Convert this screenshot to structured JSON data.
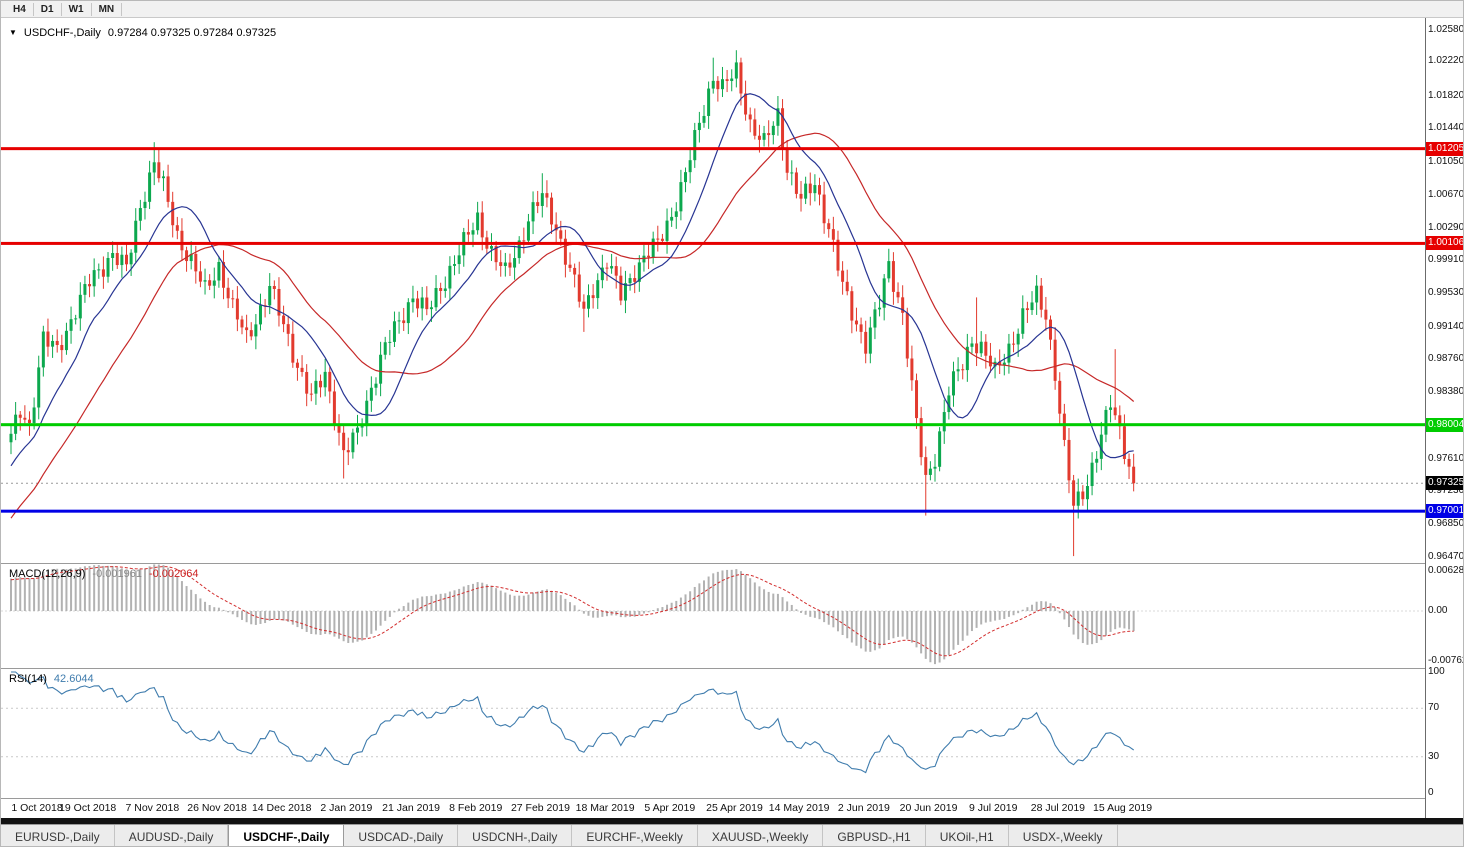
{
  "colors": {
    "up": "#0ca84e",
    "down": "#e23a2e",
    "ma_fast": "#283593",
    "ma_slow": "#c62828",
    "level_red": "#e60000",
    "level_green": "#00cc00",
    "level_blue": "#0000e6",
    "current_badge": "#000000",
    "current_line": "#999999",
    "macd_hist": "#b2b2b2",
    "macd_signal": "#d32f2f",
    "rsi_line": "#3f7cad"
  },
  "toolbar": {
    "timeframes": [
      "H4",
      "D1",
      "W1",
      "MN"
    ]
  },
  "chart": {
    "dropdown_icon": "▼",
    "title": "USDCHF-,Daily",
    "ohlc": "0.97284 0.97325 0.97284 0.97325"
  },
  "chart_data": {
    "type": "candlestick",
    "symbol": "USDCHF",
    "period": "Daily",
    "last_bar": {
      "open": 0.97284,
      "high": 0.97325,
      "low": 0.97284,
      "close": 0.97325
    },
    "y_ticks": [
      "1.02580",
      "1.02220",
      "1.01820",
      "1.01440",
      "1.01050",
      "1.00670",
      "1.00290",
      "0.99910",
      "0.99530",
      "0.99140",
      "0.98760",
      "0.98380",
      "0.98000",
      "0.97610",
      "0.97230",
      "0.96850",
      "0.96470"
    ],
    "x_labels": [
      "1 Oct 2018",
      "19 Oct 2018",
      "7 Nov 2018",
      "26 Nov 2018",
      "14 Dec 2018",
      "2 Jan 2019",
      "21 Jan 2019",
      "8 Feb 2019",
      "27 Feb 2019",
      "18 Mar 2019",
      "5 Apr 2019",
      "25 Apr 2019",
      "14 May 2019",
      "2 Jun 2019",
      "20 Jun 2019",
      "9 Jul 2019",
      "28 Jul 2019",
      "15 Aug 2019"
    ],
    "x_label_step": 14,
    "price_range": {
      "top": 1.0272,
      "bottom": 0.964
    },
    "levels": [
      {
        "value": 1.01205,
        "label": "1.01205",
        "color_key": "level_red"
      },
      {
        "value": 1.00106,
        "label": "1.00106",
        "color_key": "level_red"
      },
      {
        "value": 0.98004,
        "label": "0.98004",
        "color_key": "level_green"
      },
      {
        "value": 0.97001,
        "label": "0.97001",
        "color_key": "level_blue"
      }
    ],
    "current_price": {
      "value": 0.97325,
      "label": "0.97325"
    },
    "candle_count": 244,
    "first_open": 0.978,
    "close_anchors": [
      [
        0,
        0.9785
      ],
      [
        2,
        0.9815
      ],
      [
        4,
        0.98
      ],
      [
        7,
        0.99
      ],
      [
        10,
        0.9885
      ],
      [
        14,
        0.9935
      ],
      [
        17,
        0.9965
      ],
      [
        20,
        0.9985
      ],
      [
        22,
        1.0
      ],
      [
        25,
        0.998
      ],
      [
        28,
        1.0055
      ],
      [
        31,
        1.0105
      ],
      [
        33,
        1.0075
      ],
      [
        36,
        1.002
      ],
      [
        39,
        0.999
      ],
      [
        42,
        0.9955
      ],
      [
        45,
        0.9985
      ],
      [
        48,
        0.9935
      ],
      [
        51,
        0.99
      ],
      [
        54,
        0.9935
      ],
      [
        56,
        0.996
      ],
      [
        59,
        0.9915
      ],
      [
        62,
        0.987
      ],
      [
        65,
        0.983
      ],
      [
        68,
        0.986
      ],
      [
        70,
        0.9815
      ],
      [
        72,
        0.9765
      ],
      [
        75,
        0.979
      ],
      [
        78,
        0.9845
      ],
      [
        81,
        0.989
      ],
      [
        84,
        0.992
      ],
      [
        87,
        0.995
      ],
      [
        90,
        0.993
      ],
      [
        93,
        0.996
      ],
      [
        96,
        0.999
      ],
      [
        98,
        1.001
      ],
      [
        101,
        1.004
      ],
      [
        104,
        1.0
      ],
      [
        107,
        0.9975
      ],
      [
        110,
        1.001
      ],
      [
        112,
        1.004
      ],
      [
        115,
        1.0065
      ],
      [
        118,
        1.003
      ],
      [
        121,
        0.998
      ],
      [
        124,
        0.993
      ],
      [
        126,
        0.996
      ],
      [
        129,
        0.999
      ],
      [
        132,
        0.995
      ],
      [
        135,
        0.998
      ],
      [
        138,
        1.0
      ],
      [
        140,
        1.001
      ],
      [
        143,
        1.0045
      ],
      [
        146,
        1.009
      ],
      [
        149,
        1.015
      ],
      [
        152,
        1.0205
      ],
      [
        154,
        1.019
      ],
      [
        157,
        1.021
      ],
      [
        160,
        1.015
      ],
      [
        163,
        1.0125
      ],
      [
        166,
        1.016
      ],
      [
        168,
        1.01
      ],
      [
        171,
        1.006
      ],
      [
        174,
        1.008
      ],
      [
        177,
        1.003
      ],
      [
        180,
        0.996
      ],
      [
        182,
        0.993
      ],
      [
        185,
        0.9895
      ],
      [
        188,
        0.994
      ],
      [
        190,
        0.9985
      ],
      [
        193,
        0.993
      ],
      [
        196,
        0.98
      ],
      [
        198,
        0.9735
      ],
      [
        200,
        0.9765
      ],
      [
        203,
        0.984
      ],
      [
        206,
        0.987
      ],
      [
        208,
        0.99
      ],
      [
        210,
        0.989
      ],
      [
        213,
        0.986
      ],
      [
        216,
        0.989
      ],
      [
        219,
        0.9925
      ],
      [
        222,
        0.995
      ],
      [
        224,
        0.993
      ],
      [
        226,
        0.986
      ],
      [
        228,
        0.977
      ],
      [
        230,
        0.9705
      ],
      [
        233,
        0.9735
      ],
      [
        236,
        0.9785
      ],
      [
        238,
        0.9825
      ],
      [
        240,
        0.9795
      ],
      [
        243,
        0.97325
      ]
    ],
    "spikes": [
      {
        "index": 31,
        "high": 1.0128
      },
      {
        "index": 72,
        "low": 0.9738
      },
      {
        "index": 115,
        "high": 1.0092
      },
      {
        "index": 124,
        "low": 0.9908
      },
      {
        "index": 152,
        "high": 1.0226
      },
      {
        "index": 157,
        "high": 1.0218
      },
      {
        "index": 190,
        "high": 0.9992
      },
      {
        "index": 198,
        "low": 0.9695
      },
      {
        "index": 209,
        "high": 0.9948
      },
      {
        "index": 230,
        "low": 0.9648
      },
      {
        "index": 239,
        "high": 0.9888
      }
    ],
    "macd": {
      "label": "MACD(12,26,9)",
      "value_main": "-0.001961",
      "value_signal": "-0.002064",
      "fast": 12,
      "slow": 26,
      "smoothing": 9,
      "scale_top": 0.006286,
      "scale_bottom": -0.00762,
      "axis_labels": [
        "0.006286",
        "0.00",
        "-0.00762"
      ]
    },
    "rsi": {
      "label": "RSI(14)",
      "value": "42.6044",
      "period": 14,
      "axis_labels": [
        "100",
        "70",
        "30",
        "0"
      ],
      "guide_levels": [
        70,
        30
      ]
    }
  },
  "tabs": {
    "items": [
      "EURUSD-,Daily",
      "AUDUSD-,Daily",
      "USDCHF-,Daily",
      "USDCAD-,Daily",
      "USDCNH-,Daily",
      "EURCHF-,Weekly",
      "XAUUSD-,Weekly",
      "GBPUSD-,H1",
      "UKOil-,H1",
      "USDX-,Weekly"
    ],
    "active_index": 2
  }
}
